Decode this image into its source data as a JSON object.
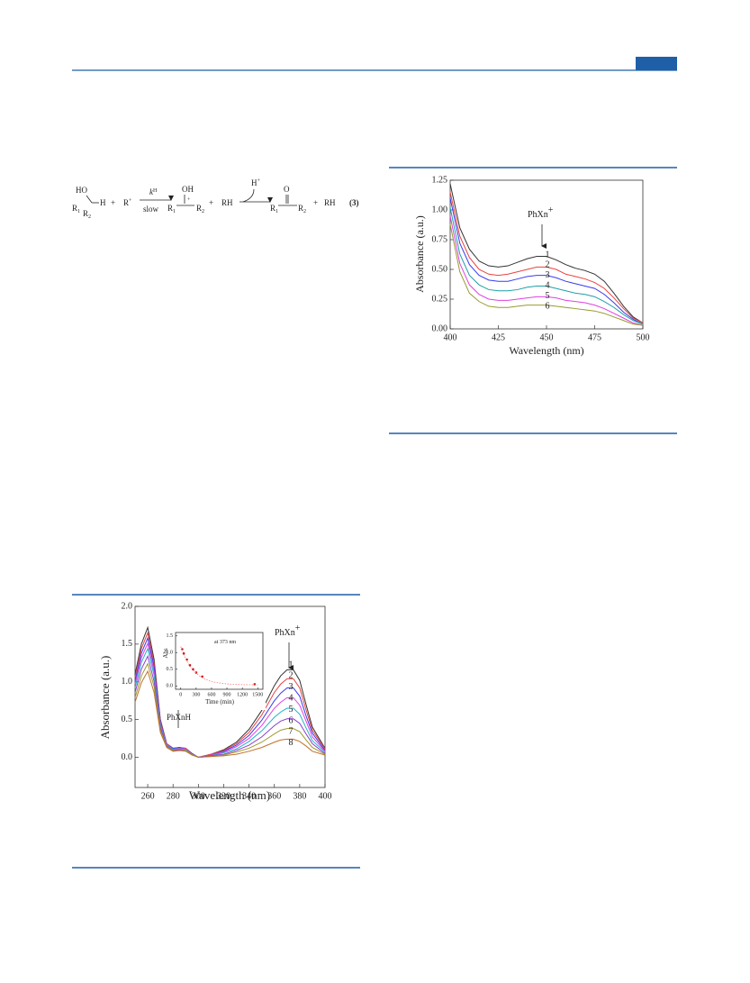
{
  "scheme": [
    "HO",
    "H",
    "R",
    "1",
    "R",
    "2",
    "+",
    "R",
    "+",
    "k",
    "H",
    "slow",
    "OH",
    "+",
    "R",
    "1",
    "R",
    "2",
    "+",
    "RH",
    "H",
    "+",
    "O",
    "R",
    "1",
    "R",
    "2",
    "+",
    "RH",
    "(3)"
  ],
  "chart_data": [
    {
      "type": "line",
      "xlabel": "Wavelength (nm)",
      "ylabel": "Absorbance (a.u.)",
      "x": [
        400,
        405,
        410,
        415,
        420,
        425,
        430,
        435,
        440,
        445,
        450,
        455,
        460,
        465,
        470,
        475,
        480,
        485,
        490,
        495,
        500
      ],
      "xlim": [
        400,
        500
      ],
      "xticks": [
        400,
        425,
        450,
        475,
        500
      ],
      "ylim": [
        0,
        1.25
      ],
      "yticks": [
        {
          "value": 0,
          "label": "0.00"
        },
        0.25,
        {
          "value": 0.5,
          "label": "0.50"
        },
        0.75,
        {
          "value": 1,
          "label": "1.00"
        },
        1.25
      ],
      "annotations": [
        {
          "text": "PhXn",
          "sup": "+"
        }
      ],
      "series": [
        {
          "name": "1",
          "color": "#333333",
          "values": [
            1.22,
            0.85,
            0.67,
            0.57,
            0.53,
            0.52,
            0.53,
            0.56,
            0.59,
            0.61,
            0.61,
            0.58,
            0.54,
            0.51,
            0.49,
            0.46,
            0.4,
            0.3,
            0.19,
            0.1,
            0.05
          ]
        },
        {
          "name": "2",
          "color": "#e8433f",
          "values": [
            1.15,
            0.78,
            0.6,
            0.5,
            0.46,
            0.45,
            0.46,
            0.48,
            0.5,
            0.52,
            0.52,
            0.5,
            0.46,
            0.44,
            0.42,
            0.39,
            0.34,
            0.26,
            0.17,
            0.09,
            0.05
          ]
        },
        {
          "name": "3",
          "color": "#3a3aef",
          "values": [
            1.1,
            0.72,
            0.54,
            0.45,
            0.41,
            0.4,
            0.4,
            0.42,
            0.44,
            0.45,
            0.45,
            0.43,
            0.4,
            0.38,
            0.36,
            0.34,
            0.29,
            0.22,
            0.14,
            0.08,
            0.04
          ]
        },
        {
          "name": "4",
          "color": "#1f9fa8",
          "values": [
            1.02,
            0.63,
            0.45,
            0.37,
            0.33,
            0.32,
            0.32,
            0.33,
            0.35,
            0.36,
            0.36,
            0.34,
            0.32,
            0.3,
            0.29,
            0.27,
            0.23,
            0.18,
            0.12,
            0.07,
            0.04
          ]
        },
        {
          "name": "5",
          "color": "#e040e0",
          "values": [
            0.95,
            0.55,
            0.37,
            0.29,
            0.25,
            0.24,
            0.24,
            0.25,
            0.26,
            0.27,
            0.27,
            0.26,
            0.24,
            0.23,
            0.22,
            0.2,
            0.17,
            0.13,
            0.09,
            0.05,
            0.03
          ]
        },
        {
          "name": "6",
          "color": "#9a9a30",
          "values": [
            0.88,
            0.48,
            0.3,
            0.23,
            0.19,
            0.18,
            0.18,
            0.19,
            0.2,
            0.2,
            0.2,
            0.19,
            0.18,
            0.17,
            0.16,
            0.15,
            0.13,
            0.1,
            0.07,
            0.04,
            0.03
          ]
        }
      ]
    },
    {
      "type": "line",
      "xlabel": "Wavelength (nm)",
      "ylabel": "Absorbance (a.u.)",
      "x": [
        250,
        255,
        260,
        265,
        270,
        275,
        280,
        285,
        290,
        295,
        300,
        310,
        320,
        330,
        340,
        350,
        360,
        365,
        370,
        375,
        380,
        385,
        390,
        400
      ],
      "xlim": [
        250,
        400
      ],
      "xticks": [
        260,
        280,
        300,
        320,
        340,
        360,
        380,
        400
      ],
      "ylim": [
        -0.4,
        2.0
      ],
      "yticks": [
        {
          "value": 0,
          "label": "0.0"
        },
        0.5,
        {
          "value": 1,
          "label": "1.0"
        },
        1.5,
        {
          "value": 2,
          "label": "2.0"
        }
      ],
      "annotations": [
        {
          "text": "PhXn",
          "sup": "+"
        },
        {
          "text": "PhXnH"
        }
      ],
      "series": [
        {
          "name": "1",
          "color": "#333333",
          "values": [
            1.1,
            1.5,
            1.72,
            1.3,
            0.5,
            0.18,
            0.12,
            0.13,
            0.12,
            0.05,
            0.0,
            0.04,
            0.1,
            0.2,
            0.37,
            0.62,
            0.95,
            1.08,
            1.16,
            1.16,
            1.02,
            0.7,
            0.4,
            0.12
          ]
        },
        {
          "name": "2",
          "color": "#e8433f",
          "values": [
            1.06,
            1.44,
            1.65,
            1.25,
            0.48,
            0.18,
            0.12,
            0.13,
            0.12,
            0.05,
            0.0,
            0.04,
            0.09,
            0.18,
            0.33,
            0.56,
            0.86,
            0.97,
            1.04,
            1.04,
            0.92,
            0.63,
            0.36,
            0.11
          ]
        },
        {
          "name": "3",
          "color": "#3a3aef",
          "values": [
            1.01,
            1.38,
            1.58,
            1.2,
            0.46,
            0.17,
            0.12,
            0.13,
            0.11,
            0.05,
            0.0,
            0.03,
            0.08,
            0.16,
            0.29,
            0.49,
            0.75,
            0.85,
            0.92,
            0.92,
            0.81,
            0.55,
            0.32,
            0.09
          ]
        },
        {
          "name": "4",
          "color": "#e040e0",
          "values": [
            0.97,
            1.32,
            1.51,
            1.14,
            0.44,
            0.17,
            0.11,
            0.12,
            0.11,
            0.04,
            0.0,
            0.03,
            0.07,
            0.14,
            0.25,
            0.42,
            0.65,
            0.73,
            0.79,
            0.79,
            0.69,
            0.48,
            0.27,
            0.08
          ]
        },
        {
          "name": "5",
          "color": "#21b3c8",
          "values": [
            0.92,
            1.26,
            1.44,
            1.09,
            0.42,
            0.16,
            0.11,
            0.11,
            0.1,
            0.04,
            0.0,
            0.02,
            0.06,
            0.11,
            0.21,
            0.35,
            0.53,
            0.6,
            0.65,
            0.65,
            0.57,
            0.39,
            0.22,
            0.07
          ]
        },
        {
          "name": "6",
          "color": "#8a3fd0",
          "values": [
            0.86,
            1.17,
            1.34,
            1.01,
            0.39,
            0.15,
            0.1,
            0.1,
            0.09,
            0.04,
            0.0,
            0.02,
            0.04,
            0.09,
            0.16,
            0.27,
            0.42,
            0.48,
            0.51,
            0.51,
            0.45,
            0.31,
            0.18,
            0.05
          ]
        },
        {
          "name": "7",
          "color": "#a09a30",
          "values": [
            0.79,
            1.08,
            1.24,
            0.94,
            0.36,
            0.14,
            0.09,
            0.09,
            0.09,
            0.04,
            0.0,
            0.01,
            0.03,
            0.07,
            0.12,
            0.2,
            0.31,
            0.36,
            0.38,
            0.38,
            0.34,
            0.23,
            0.13,
            0.04
          ]
        },
        {
          "name": "8",
          "color": "#c0702a",
          "values": [
            0.73,
            0.99,
            1.14,
            0.86,
            0.33,
            0.13,
            0.08,
            0.09,
            0.08,
            0.03,
            0.0,
            0.01,
            0.02,
            0.04,
            0.08,
            0.13,
            0.2,
            0.23,
            0.24,
            0.24,
            0.21,
            0.15,
            0.08,
            0.03
          ]
        }
      ]
    },
    {
      "type": "scatter",
      "xlabel": "Time (min)",
      "ylabel": "Abs",
      "xlim": [
        -100,
        1600
      ],
      "xticks": [
        0,
        300,
        600,
        900,
        1200,
        1500
      ],
      "ylim": [
        -0.1,
        1.6
      ],
      "yticks": [
        {
          "value": 0,
          "label": "0.0"
        },
        0.5,
        {
          "value": 1,
          "label": "1.0"
        },
        1.5
      ],
      "annotations": [
        {
          "text": "at 373 nm"
        }
      ],
      "series": [
        {
          "color": "#cc1111",
          "mode": "markers",
          "x": [
            30,
            60,
            120,
            180,
            240,
            300,
            420,
            1440
          ],
          "values": [
            1.1,
            0.97,
            0.79,
            0.62,
            0.5,
            0.4,
            0.28,
            0.05
          ]
        },
        {
          "color": "#ff7777",
          "mode": "dotted",
          "x": [
            0,
            100,
            200,
            300,
            400,
            500,
            600,
            700,
            800,
            900,
            1000,
            1200,
            1500
          ],
          "values": [
            1.18,
            0.8,
            0.55,
            0.38,
            0.26,
            0.19,
            0.13,
            0.1,
            0.08,
            0.06,
            0.05,
            0.04,
            0.03
          ]
        }
      ]
    }
  ]
}
